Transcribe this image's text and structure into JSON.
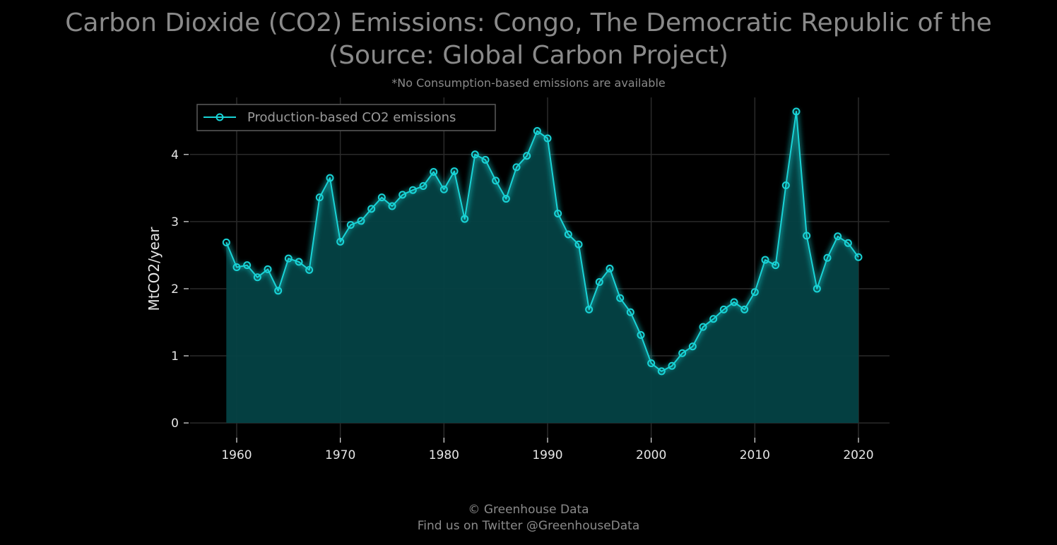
{
  "title_line1": "Carbon Dioxide (CO2) Emissions: Congo, The Democratic Republic of the",
  "title_line2": "(Source: Global Carbon Project)",
  "subtitle": "*No Consumption-based emissions are available",
  "footer_line1": "© Greenhouse Data",
  "footer_line2": "Find us on Twitter @GreenhouseData",
  "colors": {
    "background": "#000000",
    "line": "#19d3d6",
    "fill": "#044245",
    "grid": "#2a2a2a"
  },
  "chart_data": {
    "type": "area",
    "ylabel": "MtCO2/year",
    "xlabel": "",
    "xlim": [
      1955.5,
      2023
    ],
    "ylim": [
      -0.22,
      4.85
    ],
    "x_ticks": [
      1960,
      1970,
      1980,
      1990,
      2000,
      2010,
      2020
    ],
    "y_ticks": [
      0,
      1,
      2,
      3,
      4
    ],
    "grid": true,
    "legend_position": "top-left",
    "series": [
      {
        "name": "Production-based CO2 emissions",
        "x": [
          1959,
          1960,
          1961,
          1962,
          1963,
          1964,
          1965,
          1966,
          1967,
          1968,
          1969,
          1970,
          1971,
          1972,
          1973,
          1974,
          1975,
          1976,
          1977,
          1978,
          1979,
          1980,
          1981,
          1982,
          1983,
          1984,
          1985,
          1986,
          1987,
          1988,
          1989,
          1990,
          1991,
          1992,
          1993,
          1994,
          1995,
          1996,
          1997,
          1998,
          1999,
          2000,
          2001,
          2002,
          2003,
          2004,
          2005,
          2006,
          2007,
          2008,
          2009,
          2010,
          2011,
          2012,
          2013,
          2014,
          2015,
          2016,
          2017,
          2018,
          2019,
          2020
        ],
        "values": [
          2.69,
          2.32,
          2.35,
          2.17,
          2.29,
          1.97,
          2.45,
          2.4,
          2.28,
          3.36,
          3.65,
          2.7,
          2.95,
          3.01,
          3.19,
          3.36,
          3.23,
          3.4,
          3.47,
          3.53,
          3.74,
          3.48,
          3.75,
          3.04,
          4.0,
          3.92,
          3.61,
          3.34,
          3.81,
          3.98,
          4.35,
          4.24,
          3.12,
          2.81,
          2.66,
          1.69,
          2.1,
          2.3,
          1.86,
          1.65,
          1.31,
          0.89,
          0.77,
          0.85,
          1.04,
          1.14,
          1.43,
          1.55,
          1.69,
          1.8,
          1.69,
          1.95,
          2.43,
          2.35,
          3.54,
          4.64,
          2.79,
          2.0,
          2.46,
          2.78,
          2.68,
          2.47
        ]
      }
    ]
  }
}
